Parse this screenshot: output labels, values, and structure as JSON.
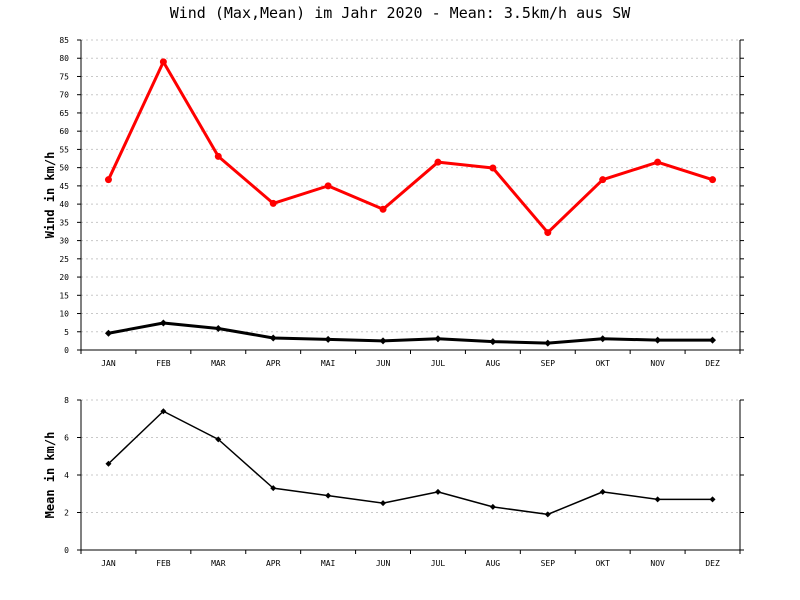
{
  "chart_data": [
    {
      "type": "line",
      "title": "Wind (Max,Mean) im Jahr 2020 - Mean: 3.5km/h aus SW",
      "xlabel": "",
      "ylabel": "Wind in km/h",
      "categories": [
        "JAN",
        "FEB",
        "MAR",
        "APR",
        "MAI",
        "JUN",
        "JUL",
        "AUG",
        "SEP",
        "OKT",
        "NOV",
        "DEZ"
      ],
      "ylim": [
        0,
        85
      ],
      "yticks": [
        0,
        5,
        10,
        15,
        20,
        25,
        30,
        35,
        40,
        45,
        50,
        55,
        60,
        65,
        70,
        75,
        80,
        85
      ],
      "grid": true,
      "series": [
        {
          "values": [
            46.7,
            79.0,
            53.1,
            40.2,
            45.0,
            38.6,
            51.5,
            49.9,
            32.2,
            46.7,
            51.5,
            46.7
          ],
          "color": "#ff0000",
          "marker": "circle"
        },
        {
          "values": [
            4.6,
            7.4,
            5.9,
            3.3,
            2.9,
            2.5,
            3.1,
            2.3,
            1.9,
            3.1,
            2.7,
            2.7
          ],
          "color": "#000000",
          "marker": "diamond"
        }
      ]
    },
    {
      "type": "line",
      "title": "",
      "xlabel": "",
      "ylabel": "Mean in km/h",
      "categories": [
        "JAN",
        "FEB",
        "MAR",
        "APR",
        "MAI",
        "JUN",
        "JUL",
        "AUG",
        "SEP",
        "OKT",
        "NOV",
        "DEZ"
      ],
      "ylim": [
        0,
        8
      ],
      "yticks": [
        0,
        2,
        4,
        6,
        8
      ],
      "grid": true,
      "series": [
        {
          "values": [
            4.6,
            7.4,
            5.9,
            3.3,
            2.9,
            2.5,
            3.1,
            2.3,
            1.9,
            3.1,
            2.7,
            2.7
          ],
          "color": "#000000",
          "marker": "diamond"
        }
      ]
    }
  ]
}
